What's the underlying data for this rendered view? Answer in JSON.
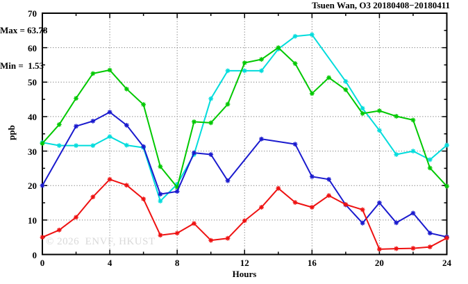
{
  "title": "Tsuen Wan, O3 20180408−20180411",
  "annotation": {
    "max_label": "Max = 63.78",
    "min_label": "Min =  1.53"
  },
  "watermark": "© 2026  ENVF, HKUST",
  "chart_data": {
    "type": "line",
    "title": "Tsuen Wan, O3 20180408−20180411",
    "xlabel": "Hours",
    "ylabel": "ppb",
    "xlim": [
      0,
      24
    ],
    "ylim": [
      0,
      70
    ],
    "grid": true,
    "legend_position": "none",
    "max_value": 63.78,
    "min_value": 1.53,
    "x": [
      0,
      1,
      2,
      3,
      4,
      5,
      6,
      7,
      8,
      9,
      10,
      11,
      12,
      13,
      14,
      15,
      16,
      17,
      18,
      19,
      20,
      21,
      22,
      23,
      24
    ],
    "x_major_ticks": [
      0,
      4,
      8,
      12,
      16,
      20,
      24
    ],
    "x_minor_ticks": [
      2,
      6,
      10,
      14,
      18,
      22
    ],
    "x_tick_labels": [
      "0",
      "4",
      "8",
      "12",
      "16",
      "20",
      "24"
    ],
    "y_major_ticks": [
      0,
      10,
      20,
      30,
      40,
      50,
      60,
      70
    ],
    "y_minor_ticks": [
      5,
      15,
      25,
      35,
      45,
      55,
      65
    ],
    "y_tick_labels": [
      "0",
      "10",
      "20",
      "30",
      "40",
      "50",
      "60",
      "70"
    ],
    "x_gridlines": [
      4,
      8,
      12,
      16,
      20
    ],
    "y_gridlines": [
      10,
      20,
      30,
      40,
      50,
      60
    ],
    "series": [
      {
        "name": "cyan-series",
        "color": "#00dcdc",
        "values": [
          32.5,
          31.6,
          31.6,
          31.6,
          34.2,
          31.7,
          31.0,
          15.5,
          20.4,
          29.0,
          45.2,
          53.3,
          53.3,
          53.3,
          59.6,
          63.3,
          63.78,
          null,
          50.2,
          42.4,
          36.0,
          29.0,
          30.0,
          27.5,
          31.7
        ]
      },
      {
        "name": "green-series",
        "color": "#00c800",
        "values": [
          32.2,
          37.7,
          45.3,
          52.5,
          53.5,
          48.0,
          43.5,
          25.5,
          19.5,
          38.5,
          38.2,
          43.6,
          55.6,
          56.6,
          60.0,
          55.4,
          46.7,
          51.3,
          47.8,
          40.9,
          41.7,
          40.1,
          39.0,
          25.1,
          19.8
        ]
      },
      {
        "name": "blue-series",
        "color": "#1a1ace",
        "values": [
          20.0,
          null,
          37.2,
          38.7,
          41.3,
          37.5,
          31.3,
          17.5,
          18.3,
          29.5,
          29.0,
          21.4,
          null,
          33.5,
          null,
          32.0,
          22.6,
          21.8,
          14.4,
          9.1,
          15.0,
          9.2,
          12.0,
          6.2,
          5.1
        ]
      },
      {
        "name": "red-series",
        "color": "#ee1111",
        "values": [
          5.0,
          7.1,
          10.8,
          16.7,
          21.8,
          20.1,
          16.1,
          5.6,
          6.2,
          9.0,
          4.1,
          4.7,
          9.8,
          13.7,
          19.2,
          15.1,
          13.7,
          17.1,
          14.5,
          13.0,
          1.53,
          1.7,
          1.8,
          2.2,
          4.8
        ]
      }
    ]
  }
}
